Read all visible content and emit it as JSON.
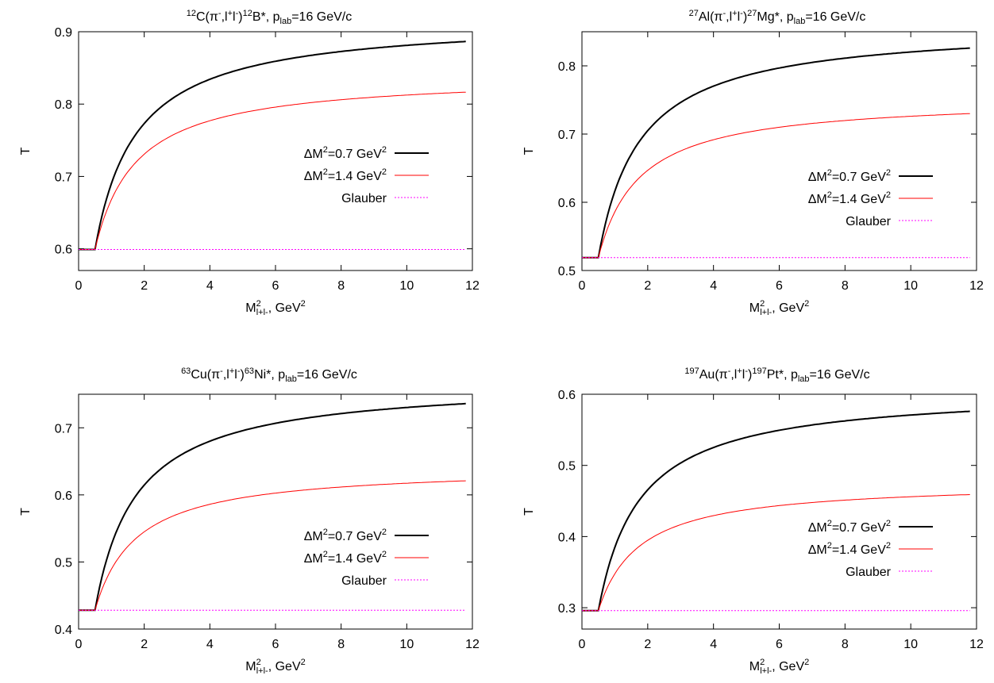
{
  "chart_data": [
    {
      "type": "line",
      "title": {
        "pre": "12",
        "a": "C(π",
        "b": "-",
        "c": ",l",
        "d": "+",
        "e": "l",
        "f": "-",
        "g": ")",
        "h": "12",
        "i": "B*,  p",
        "j": "lab",
        "k": "=16 GeV/c"
      },
      "xlabel": {
        "base": "M",
        "sup": "2",
        "sub": "l+l-",
        "rest": ", GeV",
        "rest_sup": "2"
      },
      "ylabel": "T",
      "xlim": [
        0,
        12
      ],
      "ylim": [
        0.57,
        0.9
      ],
      "xticks": [
        0,
        2,
        4,
        6,
        8,
        10,
        12
      ],
      "yticks": [
        0.6,
        0.7,
        0.8,
        0.9
      ],
      "ytick_labels": [
        "0.6",
        "0.7",
        "0.8",
        "0.9"
      ],
      "glauber": 0.599,
      "threshold": 0.5,
      "series": [
        {
          "name": {
            "pre": "ΔM",
            "sup": "2",
            "post": "=0.7 GeV",
            "sup2": "2"
          },
          "color": "#000000",
          "width": 2,
          "dash": "",
          "end": 0.8865,
          "shape": 1.25
        },
        {
          "name": {
            "pre": "ΔM",
            "sup": "2",
            "post": "=1.4 GeV",
            "sup2": "2"
          },
          "color": "#ff0000",
          "width": 1,
          "dash": "",
          "end": 0.8165,
          "shape": 1.25
        },
        {
          "name": {
            "pre": "Glauber",
            "sup": "",
            "post": "",
            "sup2": ""
          },
          "color": "#ff00ff",
          "width": 1,
          "dash": "2,2",
          "end": 0.599,
          "shape": 0
        }
      ]
    },
    {
      "type": "line",
      "title": {
        "pre": "27",
        "a": "Al(π",
        "b": "-",
        "c": ",l",
        "d": "+",
        "e": "l",
        "f": "-",
        "g": ")",
        "h": "27",
        "i": "Mg*,  p",
        "j": "lab",
        "k": "=16 GeV/c"
      },
      "xlabel": {
        "base": "M",
        "sup": "2",
        "sub": "l+l-",
        "rest": ", GeV",
        "rest_sup": "2"
      },
      "ylabel": "T",
      "xlim": [
        0,
        12
      ],
      "ylim": [
        0.5,
        0.85
      ],
      "xticks": [
        0,
        2,
        4,
        6,
        8,
        10,
        12
      ],
      "yticks": [
        0.5,
        0.6,
        0.7,
        0.8
      ],
      "ytick_labels": [
        "0.5",
        "0.6",
        "0.7",
        "0.8"
      ],
      "glauber": 0.519,
      "threshold": 0.5,
      "series": [
        {
          "name": {
            "pre": "ΔM",
            "sup": "2",
            "post": "=0.7 GeV",
            "sup2": "2"
          },
          "color": "#000000",
          "width": 2,
          "dash": "",
          "end": 0.826,
          "shape": 1.25
        },
        {
          "name": {
            "pre": "ΔM",
            "sup": "2",
            "post": "=1.4 GeV",
            "sup2": "2"
          },
          "color": "#ff0000",
          "width": 1,
          "dash": "",
          "end": 0.73,
          "shape": 1.25
        },
        {
          "name": {
            "pre": "Glauber",
            "sup": "",
            "post": "",
            "sup2": ""
          },
          "color": "#ff00ff",
          "width": 1,
          "dash": "2,2",
          "end": 0.519,
          "shape": 0
        }
      ]
    },
    {
      "type": "line",
      "title": {
        "pre": "63",
        "a": "Cu(π",
        "b": "-",
        "c": ",l",
        "d": "+",
        "e": "l",
        "f": "-",
        "g": ")",
        "h": "63",
        "i": "Ni*,  p",
        "j": "lab",
        "k": "=16 GeV/c"
      },
      "xlabel": {
        "base": "M",
        "sup": "2",
        "sub": "l+l-",
        "rest": ", GeV",
        "rest_sup": "2"
      },
      "ylabel": "T",
      "xlim": [
        0,
        12
      ],
      "ylim": [
        0.4,
        0.75
      ],
      "xticks": [
        0,
        2,
        4,
        6,
        8,
        10,
        12
      ],
      "yticks": [
        0.4,
        0.5,
        0.6,
        0.7
      ],
      "ytick_labels": [
        "0.4",
        "0.5",
        "0.6",
        "0.7"
      ],
      "glauber": 0.428,
      "threshold": 0.5,
      "series": [
        {
          "name": {
            "pre": "ΔM",
            "sup": "2",
            "post": "=0.7 GeV",
            "sup2": "2"
          },
          "color": "#000000",
          "width": 2,
          "dash": "",
          "end": 0.736,
          "shape": 1.25
        },
        {
          "name": {
            "pre": "ΔM",
            "sup": "2",
            "post": "=1.4 GeV",
            "sup2": "2"
          },
          "color": "#ff0000",
          "width": 1,
          "dash": "",
          "end": 0.621,
          "shape": 1.25
        },
        {
          "name": {
            "pre": "Glauber",
            "sup": "",
            "post": "",
            "sup2": ""
          },
          "color": "#ff00ff",
          "width": 1,
          "dash": "2,2",
          "end": 0.428,
          "shape": 0
        }
      ]
    },
    {
      "type": "line",
      "title": {
        "pre": "197",
        "a": "Au(π",
        "b": "-",
        "c": ",l",
        "d": "+",
        "e": "l",
        "f": "-",
        "g": ")",
        "h": "197",
        "i": "Pt*,  p",
        "j": "lab",
        "k": "=16 GeV/c"
      },
      "xlabel": {
        "base": "M",
        "sup": "2",
        "sub": "l+l-",
        "rest": ", GeV",
        "rest_sup": "2"
      },
      "ylabel": "T",
      "xlim": [
        0,
        12
      ],
      "ylim": [
        0.27,
        0.6
      ],
      "xticks": [
        0,
        2,
        4,
        6,
        8,
        10,
        12
      ],
      "yticks": [
        0.3,
        0.4,
        0.5,
        0.6
      ],
      "ytick_labels": [
        "0.3",
        "0.4",
        "0.5",
        "0.6"
      ],
      "glauber": 0.296,
      "threshold": 0.5,
      "series": [
        {
          "name": {
            "pre": "ΔM",
            "sup": "2",
            "post": "=0.7 GeV",
            "sup2": "2"
          },
          "color": "#000000",
          "width": 2,
          "dash": "",
          "end": 0.576,
          "shape": 1.25
        },
        {
          "name": {
            "pre": "ΔM",
            "sup": "2",
            "post": "=1.4 GeV",
            "sup2": "2"
          },
          "color": "#ff0000",
          "width": 1,
          "dash": "",
          "end": 0.459,
          "shape": 1.25
        },
        {
          "name": {
            "pre": "Glauber",
            "sup": "",
            "post": "",
            "sup2": ""
          },
          "color": "#ff00ff",
          "width": 1,
          "dash": "2,2",
          "end": 0.296,
          "shape": 0
        }
      ]
    }
  ]
}
